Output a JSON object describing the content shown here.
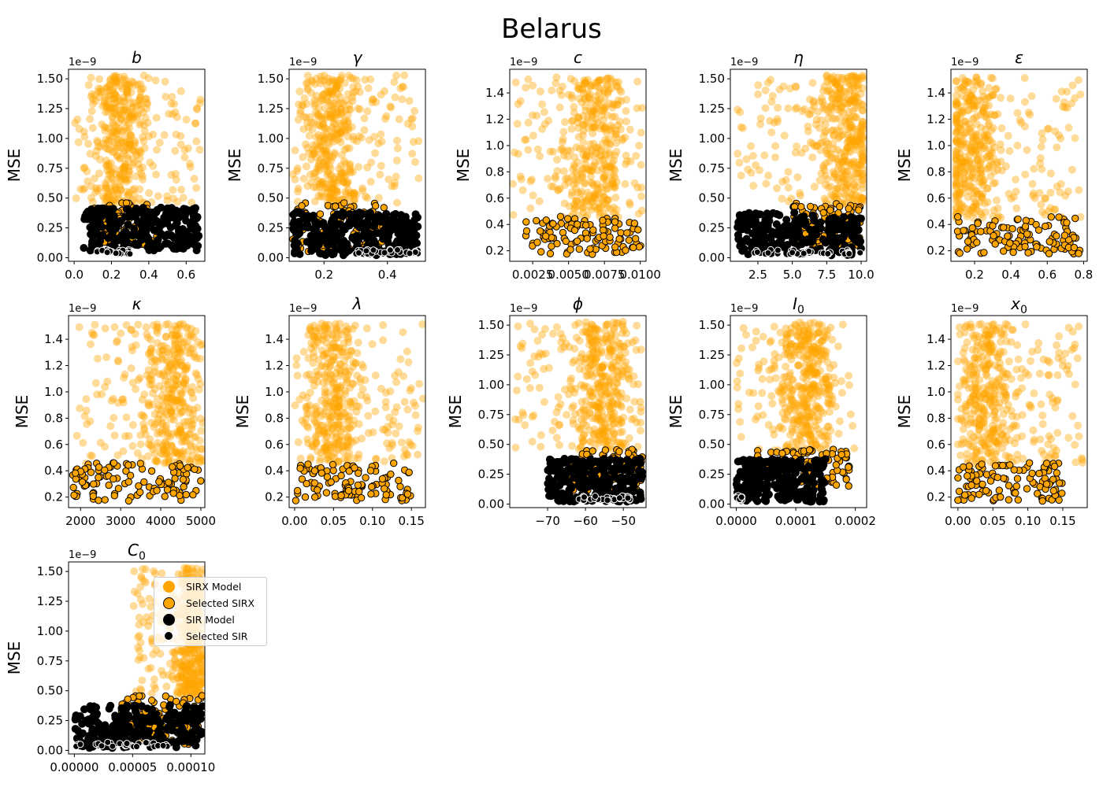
{
  "figure_title": "Belarus",
  "colors": {
    "sirx": "#FFA500",
    "sir": "#000000",
    "edge": "#000000",
    "selected_sir_edge": "#ffffff"
  },
  "legend": {
    "placement": "inside C0 panel, upper-right",
    "entries": [
      {
        "label": "SIRX Model",
        "marker": "orange-circle"
      },
      {
        "label": "Selected SIRX",
        "marker": "orange-circle-black-edge"
      },
      {
        "label": "SIR Model",
        "marker": "black-circle"
      },
      {
        "label": "Selected SIR",
        "marker": "black-circle-white-edge"
      }
    ]
  },
  "chart_data": [
    {
      "type": "scatter",
      "title": "b",
      "xlabel": "",
      "ylabel": "MSE",
      "y_exponent_label": "1e−9",
      "xlim": [
        -0.03,
        0.7
      ],
      "ylim": [
        -0.03,
        1.58
      ],
      "xticks": [
        0.0,
        0.2,
        0.4,
        0.6
      ],
      "xtick_labels": [
        "0.0",
        "0.2",
        "0.4",
        "0.6"
      ],
      "yticks": [
        0.0,
        0.25,
        0.5,
        0.75,
        1.0,
        1.25,
        1.5
      ],
      "ytick_labels": [
        "0.00",
        "0.25",
        "0.50",
        "0.75",
        "1.00",
        "1.25",
        "1.50"
      ],
      "series": [
        {
          "kind": "sirx",
          "x_range": [
            0.0,
            0.68
          ],
          "y_range": [
            0.45,
            1.53
          ],
          "x_center": 0.25
        },
        {
          "kind": "sirx_selected",
          "x_range": [
            0.1,
            0.45
          ],
          "y_range": [
            0.1,
            0.46
          ]
        },
        {
          "kind": "sir",
          "x_range": [
            0.05,
            0.67
          ],
          "y_range": [
            0.06,
            0.42
          ]
        },
        {
          "kind": "sir_selected",
          "x_range": [
            0.12,
            0.3
          ],
          "y_range": [
            0.03,
            0.07
          ]
        }
      ]
    },
    {
      "type": "scatter",
      "title": "γ",
      "xlabel": "",
      "ylabel": "MSE",
      "y_exponent_label": "1e−9",
      "xlim": [
        0.09,
        0.52
      ],
      "ylim": [
        -0.03,
        1.58
      ],
      "xticks": [
        0.2,
        0.4
      ],
      "xtick_labels": [
        "0.2",
        "0.4"
      ],
      "yticks": [
        0.0,
        0.25,
        0.5,
        0.75,
        1.0,
        1.25,
        1.5
      ],
      "ytick_labels": [
        "0.00",
        "0.25",
        "0.50",
        "0.75",
        "1.00",
        "1.25",
        "1.50"
      ],
      "series": [
        {
          "kind": "sirx",
          "x_range": [
            0.1,
            0.5
          ],
          "y_range": [
            0.45,
            1.53
          ],
          "x_center": 0.23
        },
        {
          "kind": "sirx_selected",
          "x_range": [
            0.1,
            0.4
          ],
          "y_range": [
            0.05,
            0.46
          ]
        },
        {
          "kind": "sir",
          "x_range": [
            0.1,
            0.5
          ],
          "y_range": [
            0.02,
            0.38
          ]
        },
        {
          "kind": "sir_selected",
          "x_range": [
            0.3,
            0.5
          ],
          "y_range": [
            0.03,
            0.07
          ]
        }
      ]
    },
    {
      "type": "scatter",
      "title": "c",
      "xlabel": "",
      "ylabel": "MSE",
      "y_exponent_label": "1e−9",
      "xlim": [
        0.0009,
        0.0104
      ],
      "ylim": [
        0.12,
        1.58
      ],
      "xticks": [
        0.0025,
        0.005,
        0.0075,
        0.01
      ],
      "xtick_labels": [
        "0.0025",
        "0.0050",
        "0.0075",
        "0.0100"
      ],
      "yticks": [
        0.2,
        0.4,
        0.6,
        0.8,
        1.0,
        1.2,
        1.4
      ],
      "ytick_labels": [
        "0.2",
        "0.4",
        "0.6",
        "0.8",
        "1.0",
        "1.2",
        "1.4"
      ],
      "series": [
        {
          "kind": "sirx",
          "x_range": [
            0.001,
            0.0102
          ],
          "y_range": [
            0.45,
            1.52
          ],
          "x_center": 0.007
        },
        {
          "kind": "sirx_selected",
          "x_range": [
            0.002,
            0.0102
          ],
          "y_range": [
            0.17,
            0.46
          ]
        }
      ]
    },
    {
      "type": "scatter",
      "title": "η",
      "xlabel": "",
      "ylabel": "MSE",
      "y_exponent_label": "1e−9",
      "xlim": [
        0.5,
        10.4
      ],
      "ylim": [
        -0.03,
        1.58
      ],
      "xticks": [
        2.5,
        5.0,
        7.5,
        10.0
      ],
      "xtick_labels": [
        "2.5",
        "5.0",
        "7.5",
        "10.0"
      ],
      "yticks": [
        0.0,
        0.25,
        0.5,
        0.75,
        1.0,
        1.25,
        1.5
      ],
      "ytick_labels": [
        "0.00",
        "0.25",
        "0.50",
        "0.75",
        "1.00",
        "1.25",
        "1.50"
      ],
      "series": [
        {
          "kind": "sirx",
          "x_range": [
            1.0,
            10.1
          ],
          "y_range": [
            0.45,
            1.53
          ],
          "x_center": 8.8
        },
        {
          "kind": "sirx_selected",
          "x_range": [
            5.0,
            10.0
          ],
          "y_range": [
            0.1,
            0.46
          ]
        },
        {
          "kind": "sir",
          "x_range": [
            1.0,
            10.0
          ],
          "y_range": [
            0.02,
            0.38
          ]
        },
        {
          "kind": "sir_selected",
          "x_range": [
            1.5,
            10.0
          ],
          "y_range": [
            0.03,
            0.07
          ]
        }
      ]
    },
    {
      "type": "scatter",
      "title": "ε",
      "xlabel": "",
      "ylabel": "MSE",
      "y_exponent_label": "1e−9",
      "xlim": [
        0.07,
        0.82
      ],
      "ylim": [
        0.12,
        1.58
      ],
      "xticks": [
        0.2,
        0.4,
        0.6,
        0.8
      ],
      "xtick_labels": [
        "0.2",
        "0.4",
        "0.6",
        "0.8"
      ],
      "yticks": [
        0.2,
        0.4,
        0.6,
        0.8,
        1.0,
        1.2,
        1.4
      ],
      "ytick_labels": [
        "0.2",
        "0.4",
        "0.6",
        "0.8",
        "1.0",
        "1.2",
        "1.4"
      ],
      "series": [
        {
          "kind": "sirx",
          "x_range": [
            0.1,
            0.8
          ],
          "y_range": [
            0.45,
            1.52
          ],
          "x_center": 0.18
        },
        {
          "kind": "sirx_selected",
          "x_range": [
            0.1,
            0.78
          ],
          "y_range": [
            0.17,
            0.46
          ]
        }
      ]
    },
    {
      "type": "scatter",
      "title": "κ",
      "xlabel": "",
      "ylabel": "MSE",
      "y_exponent_label": "1e−9",
      "xlim": [
        1700,
        5100
      ],
      "ylim": [
        0.12,
        1.58
      ],
      "xticks": [
        2000,
        3000,
        4000,
        5000
      ],
      "xtick_labels": [
        "2000",
        "3000",
        "4000",
        "5000"
      ],
      "yticks": [
        0.2,
        0.4,
        0.6,
        0.8,
        1.0,
        1.2,
        1.4
      ],
      "ytick_labels": [
        "0.2",
        "0.4",
        "0.6",
        "0.8",
        "1.0",
        "1.2",
        "1.4"
      ],
      "series": [
        {
          "kind": "sirx",
          "x_range": [
            1900,
            5050
          ],
          "y_range": [
            0.45,
            1.52
          ],
          "x_center": 4300
        },
        {
          "kind": "sirx_selected",
          "x_range": [
            1800,
            5000
          ],
          "y_range": [
            0.17,
            0.46
          ]
        }
      ]
    },
    {
      "type": "scatter",
      "title": "λ",
      "xlabel": "",
      "ylabel": "MSE",
      "y_exponent_label": "1e−9",
      "xlim": [
        -0.007,
        0.168
      ],
      "ylim": [
        0.12,
        1.58
      ],
      "xticks": [
        0.0,
        0.05,
        0.1,
        0.15
      ],
      "xtick_labels": [
        "0.00",
        "0.05",
        "0.10",
        "0.15"
      ],
      "yticks": [
        0.2,
        0.4,
        0.6,
        0.8,
        1.0,
        1.2,
        1.4
      ],
      "ytick_labels": [
        "0.2",
        "0.4",
        "0.6",
        "0.8",
        "1.0",
        "1.2",
        "1.4"
      ],
      "series": [
        {
          "kind": "sirx",
          "x_range": [
            0.0,
            0.165
          ],
          "y_range": [
            0.45,
            1.52
          ],
          "x_center": 0.05
        },
        {
          "kind": "sirx_selected",
          "x_range": [
            0.0,
            0.15
          ],
          "y_range": [
            0.17,
            0.46
          ]
        }
      ]
    },
    {
      "type": "scatter",
      "title": "ϕ",
      "xlabel": "",
      "ylabel": "MSE",
      "y_exponent_label": "1e−9",
      "xlim": [
        -80,
        -44
      ],
      "ylim": [
        -0.03,
        1.58
      ],
      "xticks": [
        -70,
        -60,
        -50
      ],
      "xtick_labels": [
        "−70",
        "−60",
        "−50"
      ],
      "yticks": [
        0.0,
        0.25,
        0.5,
        0.75,
        1.0,
        1.25,
        1.5
      ],
      "ytick_labels": [
        "0.00",
        "0.25",
        "0.50",
        "0.75",
        "1.00",
        "1.25",
        "1.50"
      ],
      "series": [
        {
          "kind": "sirx",
          "x_range": [
            -79,
            -45
          ],
          "y_range": [
            0.45,
            1.53
          ],
          "x_center": -55
        },
        {
          "kind": "sirx_selected",
          "x_range": [
            -65,
            -45
          ],
          "y_range": [
            0.1,
            0.46
          ]
        },
        {
          "kind": "sir",
          "x_range": [
            -70,
            -45
          ],
          "y_range": [
            0.02,
            0.38
          ]
        },
        {
          "kind": "sir_selected",
          "x_range": [
            -62,
            -48
          ],
          "y_range": [
            0.03,
            0.07
          ]
        }
      ]
    },
    {
      "type": "scatter",
      "title": "I_0",
      "xlabel": "",
      "ylabel": "MSE",
      "y_exponent_label": "1e−9",
      "xlim": [
        -1e-05,
        0.000219
      ],
      "ylim": [
        -0.03,
        1.58
      ],
      "xticks": [
        0.0,
        0.0001,
        0.0002
      ],
      "xtick_labels": [
        "0.0000",
        "0.0001",
        "0.0002"
      ],
      "yticks": [
        0.0,
        0.25,
        0.5,
        0.75,
        1.0,
        1.25,
        1.5
      ],
      "ytick_labels": [
        "0.00",
        "0.25",
        "0.50",
        "0.75",
        "1.00",
        "1.25",
        "1.50"
      ],
      "series": [
        {
          "kind": "sirx",
          "x_range": [
            0.0,
            0.0002
          ],
          "y_range": [
            0.45,
            1.53
          ],
          "x_center": 0.00012
        },
        {
          "kind": "sirx_selected",
          "x_range": [
            3e-05,
            0.00019
          ],
          "y_range": [
            0.15,
            0.46
          ]
        },
        {
          "kind": "sir",
          "x_range": [
            0.0,
            0.00015
          ],
          "y_range": [
            0.02,
            0.38
          ]
        },
        {
          "kind": "sir_selected",
          "x_range": [
            0.0,
            1e-05
          ],
          "y_range": [
            0.03,
            0.07
          ]
        }
      ]
    },
    {
      "type": "scatter",
      "title": "x_0",
      "xlabel": "",
      "ylabel": "MSE",
      "y_exponent_label": "1e−9",
      "xlim": [
        -0.01,
        0.185
      ],
      "ylim": [
        0.12,
        1.58
      ],
      "xticks": [
        0.0,
        0.05,
        0.1,
        0.15
      ],
      "xtick_labels": [
        "0.00",
        "0.05",
        "0.10",
        "0.15"
      ],
      "yticks": [
        0.2,
        0.4,
        0.6,
        0.8,
        1.0,
        1.2,
        1.4
      ],
      "ytick_labels": [
        "0.2",
        "0.4",
        "0.6",
        "0.8",
        "1.0",
        "1.2",
        "1.4"
      ],
      "series": [
        {
          "kind": "sirx",
          "x_range": [
            0.0,
            0.18
          ],
          "y_range": [
            0.45,
            1.52
          ],
          "x_center": 0.04
        },
        {
          "kind": "sirx_selected",
          "x_range": [
            0.0,
            0.15
          ],
          "y_range": [
            0.17,
            0.46
          ]
        }
      ]
    },
    {
      "type": "scatter",
      "title": "C_0",
      "xlabel": "",
      "ylabel": "MSE",
      "y_exponent_label": "1e−9",
      "xlim": [
        -5e-06,
        0.000112
      ],
      "ylim": [
        -0.03,
        1.58
      ],
      "xticks": [
        0.0,
        5e-05,
        0.0001
      ],
      "xtick_labels": [
        "0.00000",
        "0.00005",
        "0.00010"
      ],
      "yticks": [
        0.0,
        0.25,
        0.5,
        0.75,
        1.0,
        1.25,
        1.5
      ],
      "ytick_labels": [
        "0.00",
        "0.25",
        "0.50",
        "0.75",
        "1.00",
        "1.25",
        "1.50"
      ],
      "series": [
        {
          "kind": "sirx",
          "x_range": [
            5e-05,
            0.00011
          ],
          "y_range": [
            0.45,
            1.53
          ],
          "x_center": 0.0001
        },
        {
          "kind": "sirx_selected",
          "x_range": [
            4e-05,
            0.00011
          ],
          "y_range": [
            0.05,
            0.46
          ]
        },
        {
          "kind": "sir",
          "x_range": [
            0.0,
            0.00011
          ],
          "y_range": [
            0.02,
            0.38
          ]
        },
        {
          "kind": "sir_selected",
          "x_range": [
            0.0,
            8e-05
          ],
          "y_range": [
            0.03,
            0.07
          ]
        }
      ]
    }
  ]
}
